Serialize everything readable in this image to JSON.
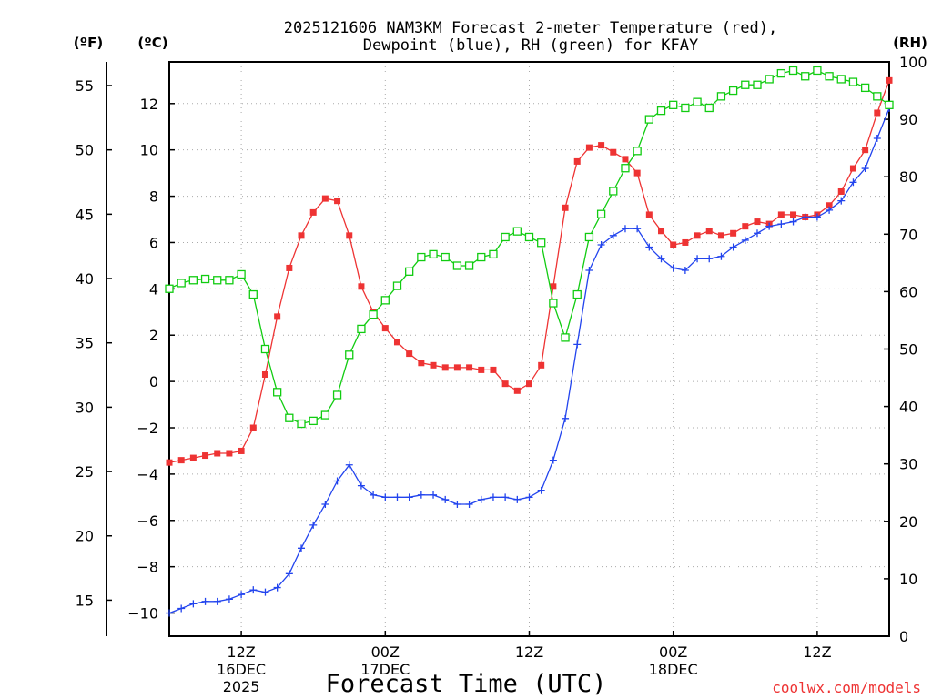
{
  "chart_data": {
    "type": "line",
    "title_line1": "2025121606 NAM3KM Forecast 2-meter Temperature (red),",
    "title_line2": "Dewpoint (blue), RH (green) for KFAY",
    "xlabel": "Forecast Time (UTC)",
    "left_outer_unit": "(ºF)",
    "left_inner_unit": "(ºC)",
    "right_unit": "(RH)",
    "watermark": "coolwx.com/models",
    "x_hours_since_06z_16dec": [
      0,
      60
    ],
    "celsius_axis": {
      "ylim": [
        -11.0,
        13.8
      ],
      "ticks": [
        "-10",
        "-8",
        "-6",
        "-4",
        "-2",
        "0",
        "2",
        "4",
        "6",
        "8",
        "10",
        "12"
      ]
    },
    "fahrenheit_axis": {
      "ticks": [
        "15",
        "20",
        "25",
        "30",
        "35",
        "40",
        "45",
        "50",
        "55"
      ]
    },
    "rh_axis": {
      "ylim": [
        0,
        100
      ],
      "ticks": [
        "0",
        "10",
        "20",
        "30",
        "40",
        "50",
        "60",
        "70",
        "80",
        "90",
        "100"
      ]
    },
    "x_ticks": [
      {
        "hour": 6,
        "line1": "12Z",
        "line2": "16DEC",
        "line3": "2025"
      },
      {
        "hour": 18,
        "line1": "00Z",
        "line2": "17DEC",
        "line3": ""
      },
      {
        "hour": 30,
        "line1": "12Z",
        "line2": "",
        "line3": ""
      },
      {
        "hour": 42,
        "line1": "00Z",
        "line2": "18DEC",
        "line3": ""
      },
      {
        "hour": 54,
        "line1": "12Z",
        "line2": "",
        "line3": ""
      }
    ],
    "series": [
      {
        "name": "Temperature (°C)",
        "color": "#ee3333",
        "marker": "filled-square",
        "axis": "celsius",
        "values": [
          -3.5,
          -3.4,
          -3.3,
          -3.2,
          -3.1,
          -3.1,
          -3.0,
          -2.0,
          0.3,
          2.8,
          4.9,
          6.3,
          7.3,
          7.9,
          7.8,
          6.3,
          4.1,
          3.0,
          2.3,
          1.7,
          1.2,
          0.8,
          0.7,
          0.6,
          0.6,
          0.6,
          0.5,
          0.5,
          -0.1,
          -0.4,
          -0.1,
          0.7,
          4.1,
          7.5,
          9.5,
          10.1,
          10.2,
          9.9,
          9.6,
          9.0,
          7.2,
          6.5,
          5.9,
          6.0,
          6.3,
          6.5,
          6.3,
          6.4,
          6.7,
          6.9,
          6.8,
          7.2,
          7.2,
          7.1,
          7.2,
          7.6,
          8.2,
          9.2,
          10.0,
          11.6,
          13.0
        ]
      },
      {
        "name": "Dewpoint (°C)",
        "color": "#2244ee",
        "marker": "plus",
        "axis": "celsius",
        "values": [
          -10.0,
          -9.8,
          -9.6,
          -9.5,
          -9.5,
          -9.4,
          -9.2,
          -9.0,
          -9.1,
          -8.9,
          -8.3,
          -7.2,
          -6.2,
          -5.3,
          -4.3,
          -3.6,
          -4.5,
          -4.9,
          -5.0,
          -5.0,
          -5.0,
          -4.9,
          -4.9,
          -5.1,
          -5.3,
          -5.3,
          -5.1,
          -5.0,
          -5.0,
          -5.1,
          -5.0,
          -4.7,
          -3.4,
          -1.6,
          1.6,
          4.8,
          5.9,
          6.3,
          6.6,
          6.6,
          5.8,
          5.3,
          4.9,
          4.8,
          5.3,
          5.3,
          5.4,
          5.8,
          6.1,
          6.4,
          6.7,
          6.8,
          6.9,
          7.1,
          7.1,
          7.4,
          7.8,
          8.6,
          9.2,
          10.5,
          11.8
        ]
      },
      {
        "name": "RH (%)",
        "color": "#11cc11",
        "marker": "open-square",
        "axis": "rh",
        "values": [
          60.5,
          61.5,
          62.0,
          62.2,
          62.0,
          62.0,
          63.0,
          59.5,
          50.0,
          42.5,
          38.0,
          37.0,
          37.5,
          38.5,
          42.0,
          49.0,
          53.5,
          56.0,
          58.5,
          61.0,
          63.5,
          66.0,
          66.5,
          66.0,
          64.5,
          64.5,
          66.0,
          66.5,
          69.5,
          70.5,
          69.5,
          68.5,
          58.0,
          52.0,
          59.5,
          69.5,
          73.5,
          77.5,
          81.5,
          84.5,
          90.0,
          91.5,
          92.5,
          92.0,
          93.0,
          92.0,
          94.0,
          95.0,
          96.0,
          96.0,
          97.0,
          98.0,
          98.5,
          97.5,
          98.5,
          97.5,
          97.0,
          96.5,
          95.5,
          94.0,
          92.5
        ]
      }
    ]
  }
}
